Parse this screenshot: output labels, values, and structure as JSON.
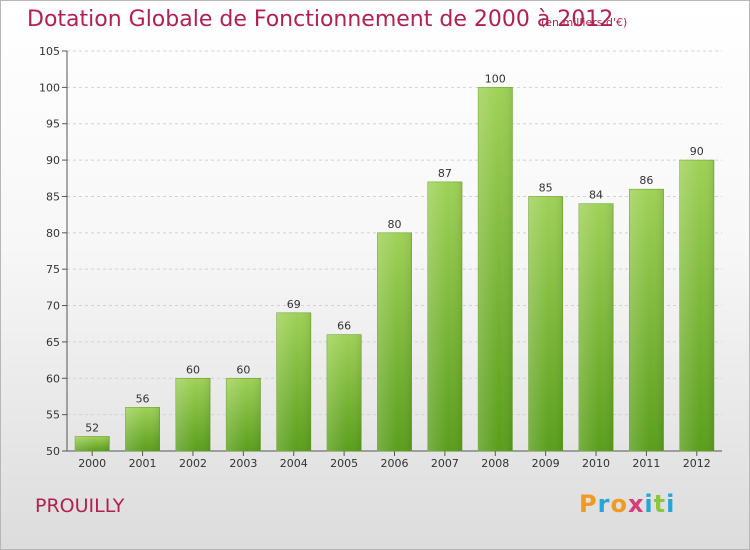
{
  "header": {
    "title": "Dotation Globale de Fonctionnement de 2000 à 2012",
    "unit": "(en milliers d'€)"
  },
  "footer": {
    "commune": "PROUILLY",
    "logo": "Proxiti"
  },
  "colors": {
    "title": "#b3204f",
    "bar_top": "#9fd157",
    "bar_bottom": "#5a9e1c",
    "logo_letters": [
      "#f29a1f",
      "#2aa4d8",
      "#f29a1f",
      "#d63b7a",
      "#2aa4d8",
      "#8cc63f",
      "#2aa4d8"
    ]
  },
  "chart_data": {
    "type": "bar",
    "title": "Dotation Globale de Fonctionnement de 2000 à 2012",
    "subtitle": "(en milliers d'€)",
    "categories": [
      "2000",
      "2001",
      "2002",
      "2003",
      "2004",
      "2005",
      "2006",
      "2007",
      "2008",
      "2009",
      "2010",
      "2011",
      "2012"
    ],
    "values": [
      52,
      56,
      60,
      60,
      69,
      66,
      80,
      87,
      100,
      85,
      84,
      86,
      90
    ],
    "ylim": [
      50,
      105
    ],
    "yticks": [
      50,
      55,
      60,
      65,
      70,
      75,
      80,
      85,
      90,
      95,
      100,
      105
    ],
    "grid": true,
    "legend": "none"
  }
}
